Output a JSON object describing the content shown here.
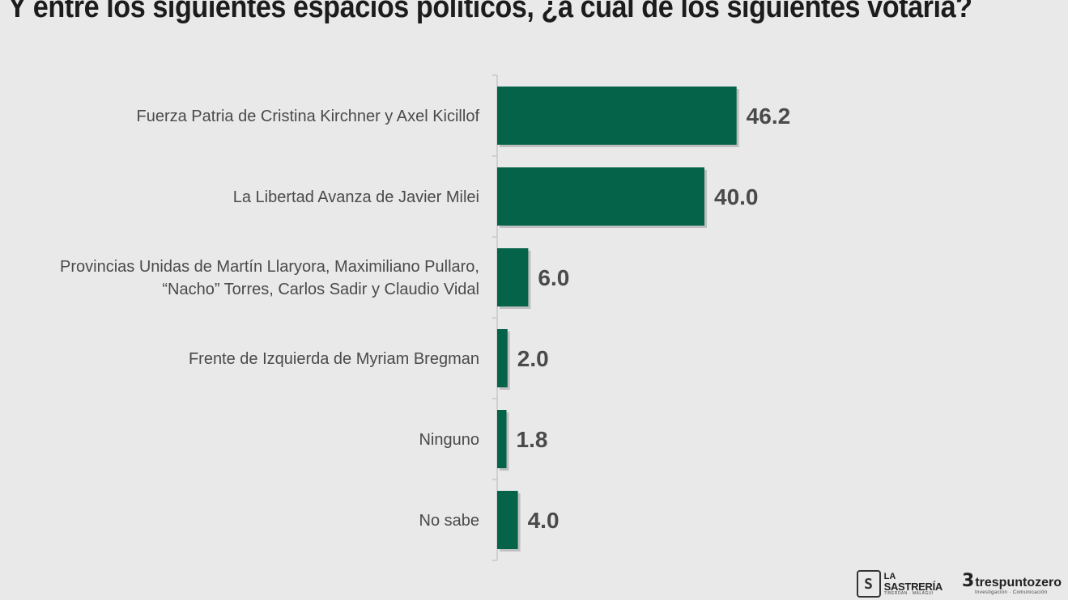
{
  "title": "Y entre los siguientes espacios politicos, ¿a cuál de los siguientes votaria?",
  "chart_data": {
    "type": "bar",
    "orientation": "horizontal",
    "categories": [
      [
        "Fuerza Patria de Cristina Kirchner y Axel Kicillof"
      ],
      [
        "La Libertad Avanza de Javier Milei"
      ],
      [
        "Provincias Unidas de Martín Llaryora, Maximiliano Pullaro,",
        "“Nacho” Torres, Carlos Sadir y Claudio Vidal"
      ],
      [
        "Frente de Izquierda de Myriam Bregman"
      ],
      [
        "Ninguno"
      ],
      [
        "No sabe"
      ]
    ],
    "values": [
      46.2,
      40.0,
      6.0,
      2.0,
      1.8,
      4.0
    ],
    "value_labels": [
      "46.2",
      "40.0",
      "6.0",
      "2.0",
      "1.8",
      "4.0"
    ],
    "xlim": [
      0,
      100
    ],
    "bar_color": "#05634a",
    "grid": false,
    "legend": "none"
  },
  "logos": {
    "sastreria": {
      "line1": "LA",
      "line2": "SASTRERÍA",
      "line3": "TIBERDAN · MALAGUI"
    },
    "trespuntozero": {
      "name": "trespuntozero",
      "tagline": "Investigación · Comunicación"
    }
  }
}
